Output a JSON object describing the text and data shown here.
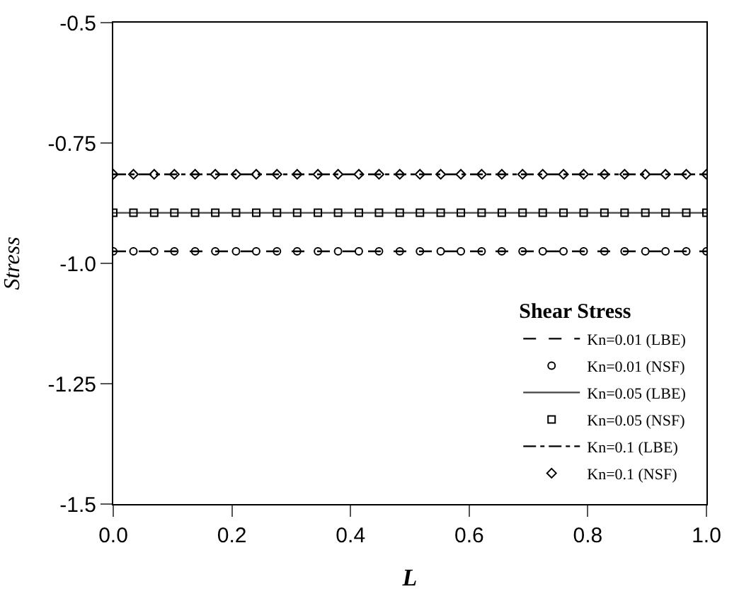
{
  "chart_data": {
    "type": "line",
    "xlabel": "L",
    "ylabel": "Stress",
    "legend_title": "Shear Stress",
    "xlim": [
      0,
      1
    ],
    "xticks": [
      {
        "value": 0,
        "label": "0.0"
      },
      0.2,
      0.4,
      0.6,
      0.8,
      {
        "value": 1,
        "label": "1.0"
      }
    ],
    "ylim": [
      -1.5,
      -0.5
    ],
    "yticks": [
      -1.5,
      -1.25,
      {
        "value": -1,
        "label": "-1.0"
      },
      -0.75,
      -0.5
    ],
    "legend": "bottom right",
    "series": [
      {
        "name": "Kn=0.01 (LBE)",
        "line_style": "dashed",
        "color": "#000000",
        "x": [
          0,
          1
        ],
        "values": [
          -0.975,
          -0.975
        ]
      },
      {
        "name": "Kn=0.01 (NSF)",
        "type": "scatter",
        "marker": "circle",
        "color": "#000000",
        "x": [
          0,
          0.034,
          0.069,
          0.103,
          0.138,
          0.172,
          0.207,
          0.241,
          0.276,
          0.31,
          0.345,
          0.379,
          0.414,
          0.448,
          0.483,
          0.517,
          0.552,
          0.586,
          0.621,
          0.655,
          0.69,
          0.724,
          0.759,
          0.793,
          0.828,
          0.862,
          0.897,
          0.931,
          0.966,
          1
        ],
        "values": [
          -0.975,
          -0.975,
          -0.975,
          -0.975,
          -0.975,
          -0.975,
          -0.975,
          -0.975,
          -0.975,
          -0.975,
          -0.975,
          -0.975,
          -0.975,
          -0.975,
          -0.975,
          -0.975,
          -0.975,
          -0.975,
          -0.975,
          -0.975,
          -0.975,
          -0.975,
          -0.975,
          -0.975,
          -0.975,
          -0.975,
          -0.975,
          -0.975,
          -0.975,
          -0.975
        ]
      },
      {
        "name": "Kn=0.05 (LBE)",
        "line_style": "solid",
        "color": "#444444",
        "x": [
          0,
          1
        ],
        "values": [
          -0.895,
          -0.895
        ]
      },
      {
        "name": "Kn=0.05 (NSF)",
        "type": "scatter",
        "marker": "square",
        "color": "#000000",
        "x": [
          0,
          0.034,
          0.069,
          0.103,
          0.138,
          0.172,
          0.207,
          0.241,
          0.276,
          0.31,
          0.345,
          0.379,
          0.414,
          0.448,
          0.483,
          0.517,
          0.552,
          0.586,
          0.621,
          0.655,
          0.69,
          0.724,
          0.759,
          0.793,
          0.828,
          0.862,
          0.897,
          0.931,
          0.966,
          1
        ],
        "values": [
          -0.895,
          -0.895,
          -0.895,
          -0.895,
          -0.895,
          -0.895,
          -0.895,
          -0.895,
          -0.895,
          -0.895,
          -0.895,
          -0.895,
          -0.895,
          -0.895,
          -0.895,
          -0.895,
          -0.895,
          -0.895,
          -0.895,
          -0.895,
          -0.895,
          -0.895,
          -0.895,
          -0.895,
          -0.895,
          -0.895,
          -0.895,
          -0.895,
          -0.895,
          -0.895
        ]
      },
      {
        "name": "Kn=0.1 (LBE)",
        "line_style": "dashdot",
        "color": "#000000",
        "x": [
          0,
          1
        ],
        "values": [
          -0.815,
          -0.815
        ]
      },
      {
        "name": "Kn=0.1 (NSF)",
        "type": "scatter",
        "marker": "diamond",
        "color": "#000000",
        "x": [
          0,
          0.034,
          0.069,
          0.103,
          0.138,
          0.172,
          0.207,
          0.241,
          0.276,
          0.31,
          0.345,
          0.379,
          0.414,
          0.448,
          0.483,
          0.517,
          0.552,
          0.586,
          0.621,
          0.655,
          0.69,
          0.724,
          0.759,
          0.793,
          0.828,
          0.862,
          0.897,
          0.931,
          0.966,
          1
        ],
        "values": [
          -0.815,
          -0.815,
          -0.815,
          -0.815,
          -0.815,
          -0.815,
          -0.815,
          -0.815,
          -0.815,
          -0.815,
          -0.815,
          -0.815,
          -0.815,
          -0.815,
          -0.815,
          -0.815,
          -0.815,
          -0.815,
          -0.815,
          -0.815,
          -0.815,
          -0.815,
          -0.815,
          -0.815,
          -0.815,
          -0.815,
          -0.815,
          -0.815,
          -0.815,
          -0.815
        ]
      }
    ]
  }
}
